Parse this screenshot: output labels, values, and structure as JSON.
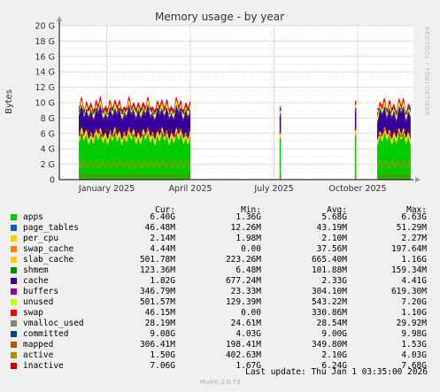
{
  "chart_data": {
    "type": "area",
    "title": "Memory usage - by year",
    "ylabel": "Bytes",
    "ylim": [
      0,
      20
    ],
    "y_ticks": [
      "0",
      "2 G",
      "4 G",
      "6 G",
      "8 G",
      "10 G",
      "12 G",
      "14 G",
      "16 G",
      "18 G",
      "20 G"
    ],
    "x_ticks": [
      {
        "label": "January 2025",
        "month": 1
      },
      {
        "label": "April 2025",
        "month": 4
      },
      {
        "label": "July 2025",
        "month": 7
      },
      {
        "label": "October 2025",
        "month": 10
      }
    ],
    "x_range_months": [
      11.3,
      24
    ],
    "grid": true,
    "data_windows": [
      {
        "from_month": 12.0,
        "to_month": 16.0
      },
      {
        "from_month": 19.2,
        "to_month": 19.25
      },
      {
        "from_month": 21.9,
        "to_month": 21.95
      },
      {
        "from_month": 22.7,
        "to_month": 23.9
      }
    ],
    "stack_order": [
      "apps",
      "page_tables",
      "per_cpu",
      "swap_cache",
      "slab_cache",
      "shmem",
      "cache",
      "buffers",
      "unused",
      "swap"
    ],
    "stack_approx_gb": {
      "apps": 5.7,
      "page_tables": 0.04,
      "per_cpu": 0.002,
      "swap_cache": 0.04,
      "slab_cache": 0.65,
      "shmem": 0.1,
      "cache": 2.3,
      "buffers": 0.3,
      "unused": 0.55,
      "swap": 0.33
    },
    "line_series": [
      "vmalloc_used",
      "committed",
      "mapped",
      "active",
      "inactive"
    ]
  },
  "legend": {
    "headers": {
      "cur": "Cur:",
      "min": "Min:",
      "avg": "Avg:",
      "max": "Max:"
    },
    "rows": [
      {
        "name": "apps",
        "color": "#00cc00",
        "cur": "6.40G",
        "min": "1.36G",
        "avg": "5.68G",
        "max": "6.63G"
      },
      {
        "name": "page_tables",
        "color": "#0066b3",
        "cur": "46.48M",
        "min": "12.26M",
        "avg": "43.19M",
        "max": "51.29M"
      },
      {
        "name": "per_cpu",
        "color": "#ffcc00",
        "cur": "2.14M",
        "min": "1.98M",
        "avg": "2.10M",
        "max": "2.27M"
      },
      {
        "name": "swap_cache",
        "color": "#ff8000",
        "cur": "4.44M",
        "min": "0.00",
        "avg": "37.56M",
        "max": "197.64M"
      },
      {
        "name": "slab_cache",
        "color": "#ffcc00",
        "cur": "501.78M",
        "min": "223.26M",
        "avg": "665.40M",
        "max": "1.16G"
      },
      {
        "name": "shmem",
        "color": "#008f00",
        "cur": "123.36M",
        "min": "6.48M",
        "avg": "101.88M",
        "max": "159.34M"
      },
      {
        "name": "cache",
        "color": "#330099",
        "cur": "1.82G",
        "min": "677.24M",
        "avg": "2.33G",
        "max": "4.41G"
      },
      {
        "name": "buffers",
        "color": "#990099",
        "cur": "346.79M",
        "min": "23.33M",
        "avg": "304.10M",
        "max": "619.30M"
      },
      {
        "name": "unused",
        "color": "#ccff00",
        "cur": "501.57M",
        "min": "129.39M",
        "avg": "543.22M",
        "max": "7.20G"
      },
      {
        "name": "swap",
        "color": "#ff0000",
        "cur": "46.15M",
        "min": "0.00",
        "avg": "330.86M",
        "max": "1.10G"
      },
      {
        "name": "vmalloc_used",
        "color": "#808080",
        "cur": "28.19M",
        "min": "24.61M",
        "avg": "28.54M",
        "max": "29.92M"
      },
      {
        "name": "committed",
        "color": "#00487d",
        "cur": "9.08G",
        "min": "4.03G",
        "avg": "9.00G",
        "max": "9.98G"
      },
      {
        "name": "mapped",
        "color": "#b35a00",
        "cur": "306.41M",
        "min": "198.41M",
        "avg": "349.80M",
        "max": "1.53G"
      },
      {
        "name": "active",
        "color": "#b38f00",
        "cur": "1.50G",
        "min": "402.63M",
        "avg": "2.10G",
        "max": "4.03G"
      },
      {
        "name": "inactive",
        "color": "#cc0000",
        "cur": "7.06G",
        "min": "1.67G",
        "avg": "6.24G",
        "max": "7.68G"
      }
    ]
  },
  "footer": {
    "last_update": "Last update: Thu Jan  1 03:35:00 2026",
    "munin": "Munin 2.0.73",
    "rrd": "RRDTOOL / TOBI OETIKER"
  }
}
